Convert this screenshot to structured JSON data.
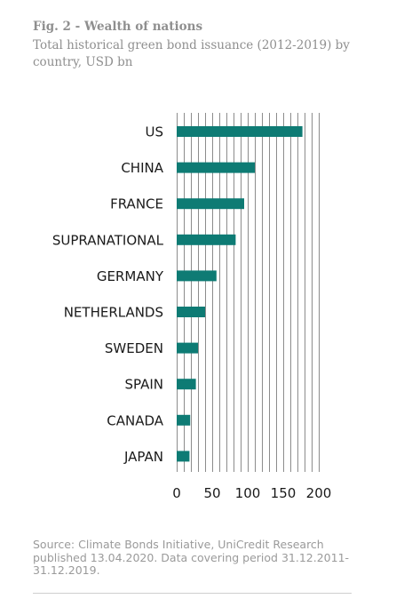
{
  "header": {
    "fig_label": "Fig. 2  - Wealth of nations",
    "subtitle": "Total historical green bond issuance (2012-2019) by country, USD bn"
  },
  "footer": {
    "source": "Source: Climate Bonds Initiative, UniCredit Research published 13.04.2020. Data covering period 31.12.2011-31.12.2019."
  },
  "colors": {
    "bar": "#0e7b74",
    "grid": "#8c8c8c",
    "text": "#1a1a1a"
  },
  "chart_data": {
    "type": "bar",
    "orientation": "horizontal",
    "title": "",
    "xlabel": "",
    "ylabel": "",
    "categories": [
      "US",
      "CHINA",
      "FRANCE",
      "SUPRANATIONAL",
      "GERMANY",
      "NETHERLANDS",
      "SWEDEN",
      "SPAIN",
      "CANADA",
      "JAPAN"
    ],
    "values": [
      177,
      110,
      95,
      83,
      56,
      40,
      30,
      27,
      19,
      18
    ],
    "xlim": [
      0,
      200
    ],
    "xticks": [
      0,
      50,
      100,
      150,
      200
    ],
    "grid": true
  }
}
